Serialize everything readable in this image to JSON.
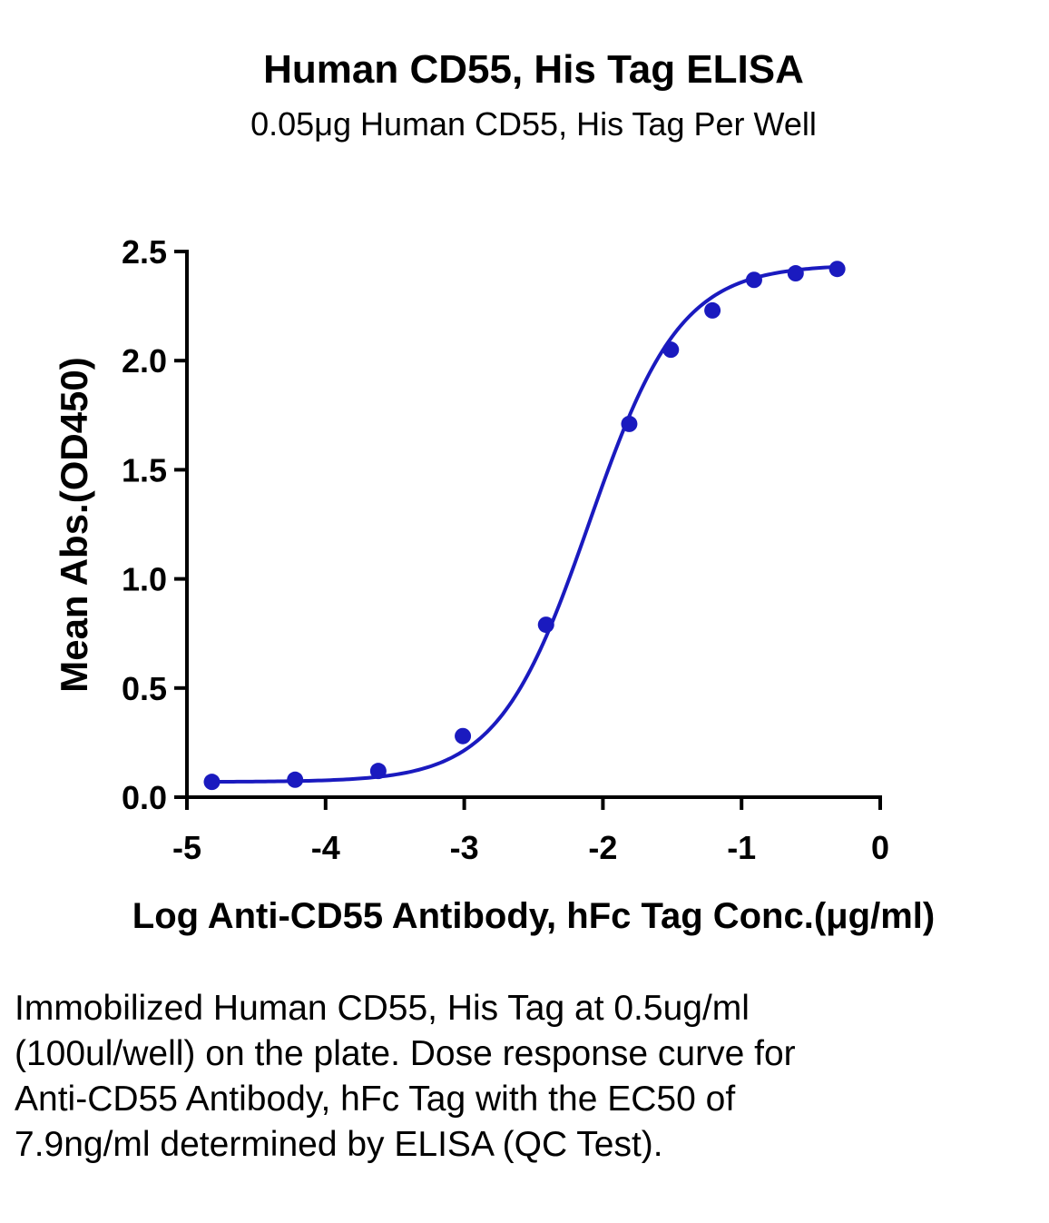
{
  "chart_data": {
    "type": "scatter",
    "title": "Human CD55, His Tag ELISA",
    "subtitle": "0.05μg Human CD55, His Tag Per Well",
    "xlabel": "Log Anti-CD55 Antibody, hFc Tag Conc.(μg/ml)",
    "ylabel": "Mean Abs.(OD450)",
    "xlim": [
      -5,
      0
    ],
    "ylim": [
      0,
      2.5
    ],
    "xticks": [
      "-5",
      "-4",
      "-3",
      "-2",
      "-1",
      "0"
    ],
    "yticks": [
      "0.0",
      "0.5",
      "1.0",
      "1.5",
      "2.0",
      "2.5"
    ],
    "grid": false,
    "color": "#1a1abf",
    "fit": "four-parameter logistic",
    "series": [
      {
        "x": [
          -4.82,
          -4.22,
          -3.62,
          -3.01,
          -2.41,
          -1.81,
          -1.51,
          -1.21,
          -0.91,
          -0.61,
          -0.31
        ],
        "y": [
          0.07,
          0.08,
          0.12,
          0.28,
          0.79,
          1.71,
          2.05,
          2.23,
          2.37,
          2.4,
          2.42
        ]
      }
    ]
  },
  "caption": "Immobilized Human CD55, His Tag at 0.5ug/ml (100ul/well) on the plate. Dose response curve for Anti-CD55 Antibody, hFc Tag with the EC50 of 7.9ng/ml determined by ELISA (QC Test)."
}
